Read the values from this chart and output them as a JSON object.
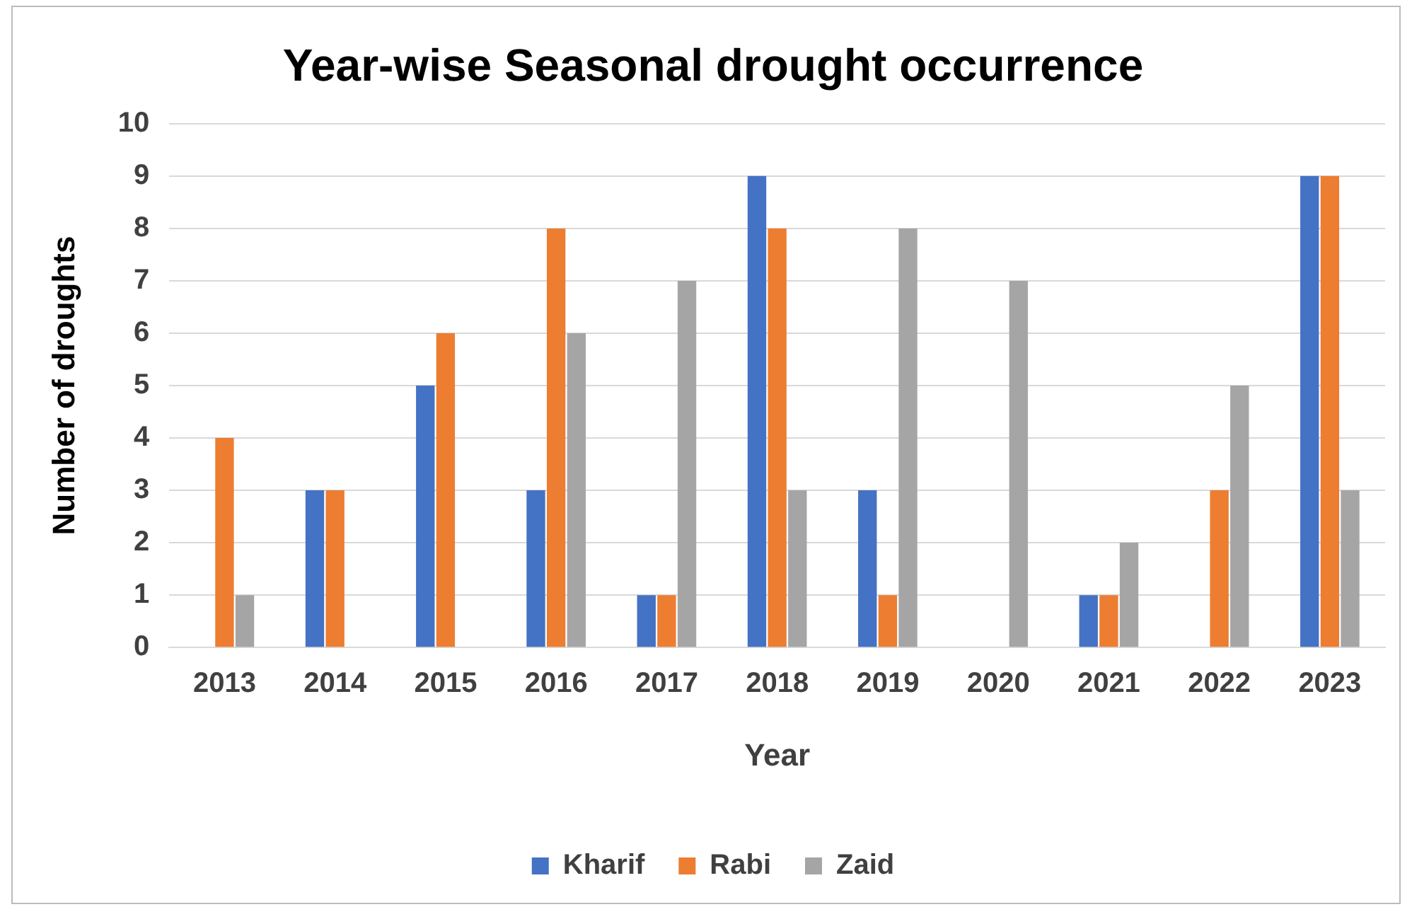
{
  "chart_data": {
    "type": "bar",
    "title": "Year-wise Seasonal drought occurrence",
    "xlabel": "Year",
    "ylabel": "Number of droughts",
    "categories": [
      "2013",
      "2014",
      "2015",
      "2016",
      "2017",
      "2018",
      "2019",
      "2020",
      "2021",
      "2022",
      "2023"
    ],
    "series": [
      {
        "name": "Kharif",
        "color": "#4472c4",
        "values": [
          0,
          3,
          5,
          3,
          1,
          9,
          3,
          0,
          1,
          0,
          9
        ]
      },
      {
        "name": "Rabi",
        "color": "#ed7d31",
        "values": [
          4,
          3,
          6,
          8,
          1,
          8,
          1,
          0,
          1,
          3,
          9
        ]
      },
      {
        "name": "Zaid",
        "color": "#a5a5a5",
        "values": [
          1,
          0,
          0,
          6,
          7,
          3,
          8,
          7,
          2,
          5,
          3
        ]
      }
    ],
    "ylim": [
      0,
      10
    ],
    "yticks": [
      0,
      1,
      2,
      3,
      4,
      5,
      6,
      7,
      8,
      9,
      10
    ],
    "grid": "y",
    "legend": "bottom"
  }
}
